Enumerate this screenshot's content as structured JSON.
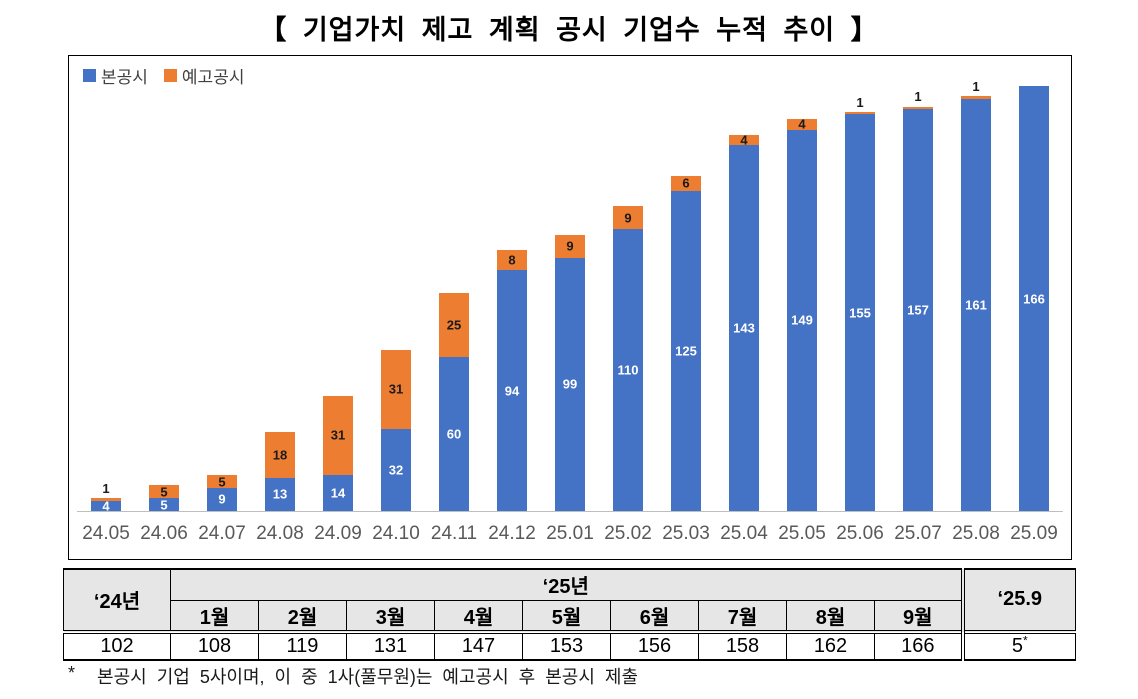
{
  "chart_data": {
    "type": "bar",
    "stacked": true,
    "title": "【 기업가치 제고 계획 공시 기업수 누적 추이 】",
    "categories": [
      "24.05",
      "24.06",
      "24.07",
      "24.08",
      "24.09",
      "24.10",
      "24.11",
      "24.12",
      "25.01",
      "25.02",
      "25.03",
      "25.04",
      "25.05",
      "25.06",
      "25.07",
      "25.08",
      "25.09"
    ],
    "series": [
      {
        "name": "본공시",
        "color": "#4472C4",
        "label_color": "#FFFFFF",
        "values": [
          4,
          5,
          9,
          13,
          14,
          32,
          60,
          94,
          99,
          110,
          125,
          143,
          149,
          155,
          157,
          161,
          166
        ]
      },
      {
        "name": "예고공시",
        "color": "#ED7D31",
        "label_color": "#1A1A1A",
        "values": [
          1,
          5,
          5,
          18,
          31,
          31,
          25,
          8,
          9,
          9,
          6,
          4,
          4,
          1,
          1,
          1,
          0
        ]
      }
    ],
    "ylim": [
      0,
      170
    ],
    "grid": false,
    "legend_position": "top-left",
    "axis_line_color": "#BFBFBF"
  },
  "table": {
    "header_year24": "‘24년",
    "header_year25": "‘25년",
    "months": [
      "1월",
      "2월",
      "3월",
      "4월",
      "5월",
      "6월",
      "7월",
      "8월",
      "9월"
    ],
    "header_sep": "‘25.9",
    "value_year24": "102",
    "month_values": [
      "108",
      "119",
      "131",
      "147",
      "153",
      "156",
      "158",
      "162",
      "166"
    ],
    "value_sep": "5",
    "value_sep_sup": "*"
  },
  "footnote": {
    "marker": "*",
    "text": "본공시 기업 5사이며, 이 중 1사(풀무원)는 예고공시 후 본공시 제출"
  }
}
